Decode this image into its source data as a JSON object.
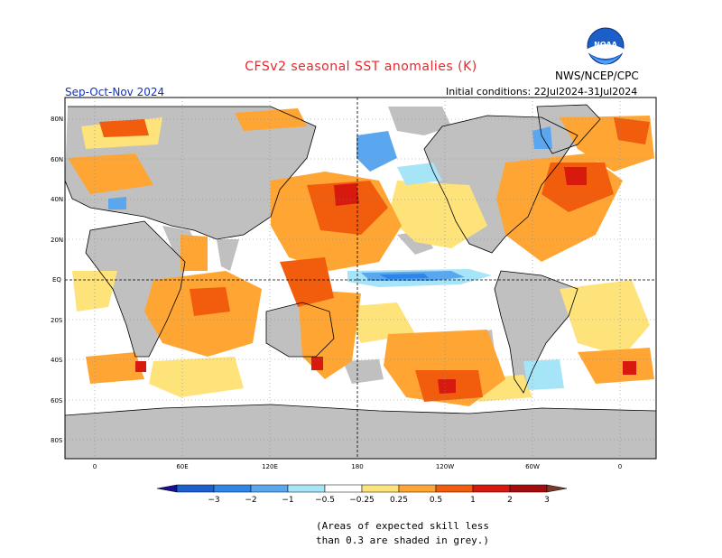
{
  "header": {
    "title": "CFSv2 seasonal SST anomalies (K)",
    "agency": "NWS/NCEP/CPC",
    "season": "Sep-Oct-Nov 2024",
    "initial_conditions": "Initial conditions: 22Jul2024-31Jul2024",
    "logo_icon": "noaa-logo-icon",
    "logo_text": "NOAA"
  },
  "map": {
    "lat_labels": [
      "80N",
      "60N",
      "40N",
      "20N",
      "EQ",
      "20S",
      "40S",
      "60S",
      "80S"
    ],
    "lon_labels": [
      "0",
      "60E",
      "120E",
      "180",
      "120W",
      "60W",
      "0"
    ],
    "land_color": "#c0c0c0"
  },
  "colorbar": {
    "labels": [
      "−3",
      "−2",
      "−1",
      "−0.5",
      "−0.25",
      "0.25",
      "0.5",
      "1",
      "2",
      "3"
    ],
    "colors": [
      "#1a0f8c",
      "#1c5fd0",
      "#2f86e8",
      "#5aa7f0",
      "#a6e4f8",
      "#ffffff",
      "#fee27a",
      "#ffa533",
      "#f25c0d",
      "#d7190e",
      "#a30d0d",
      "#7a3b2c"
    ]
  },
  "note": {
    "line1": "(Areas of expected skill less",
    "line2": "than 0.3 are shaded in grey.)"
  }
}
